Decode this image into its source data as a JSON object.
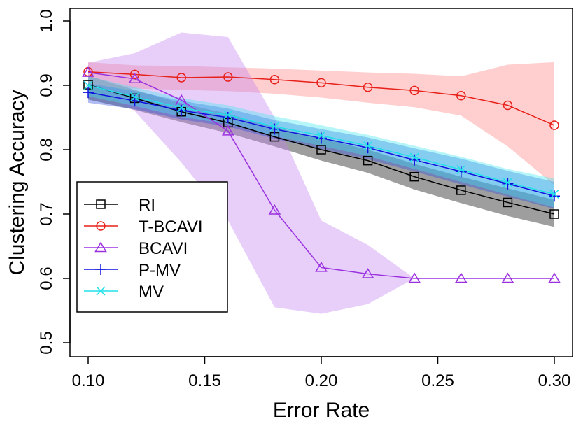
{
  "chart_data": {
    "type": "line",
    "title": "",
    "xlabel": "Error Rate",
    "ylabel": "Clustering Accuracy",
    "xlim": [
      0.1,
      0.3
    ],
    "ylim": [
      0.5,
      1.0
    ],
    "x": [
      0.1,
      0.12,
      0.14,
      0.16,
      0.18,
      0.2,
      0.22,
      0.24,
      0.26,
      0.28,
      0.3
    ],
    "x_ticks": [
      0.1,
      0.15,
      0.2,
      0.25,
      0.3
    ],
    "x_tick_labels": [
      "0.10",
      "0.15",
      "0.20",
      "0.25",
      "0.30"
    ],
    "y_ticks": [
      0.5,
      0.6,
      0.7,
      0.8,
      0.9,
      1.0
    ],
    "y_tick_labels": [
      "0.5",
      "0.6",
      "0.7",
      "0.8",
      "0.9",
      "1.0"
    ],
    "grid": false,
    "legend_position": "bottom-left",
    "series": [
      {
        "name": "RI",
        "color": "#000000",
        "band_color": "#000000",
        "marker": "square",
        "values": [
          0.901,
          0.88,
          0.859,
          0.842,
          0.82,
          0.8,
          0.783,
          0.758,
          0.737,
          0.718,
          0.7
        ],
        "lower": [
          0.878,
          0.862,
          0.843,
          0.826,
          0.805,
          0.783,
          0.764,
          0.738,
          0.717,
          0.697,
          0.68
        ],
        "upper": [
          0.915,
          0.893,
          0.872,
          0.856,
          0.835,
          0.818,
          0.8,
          0.778,
          0.758,
          0.74,
          0.722
        ]
      },
      {
        "name": "T-BCAVI",
        "color": "#e8201a",
        "band_color": "#ff8080",
        "marker": "circle",
        "values": [
          0.921,
          0.917,
          0.912,
          0.913,
          0.909,
          0.904,
          0.897,
          0.892,
          0.884,
          0.869,
          0.838
        ],
        "lower": [
          0.9,
          0.895,
          0.893,
          0.891,
          0.887,
          0.881,
          0.873,
          0.866,
          0.853,
          0.805,
          0.745
        ],
        "upper": [
          0.936,
          0.931,
          0.93,
          0.928,
          0.926,
          0.923,
          0.92,
          0.918,
          0.914,
          0.932,
          0.936
        ]
      },
      {
        "name": "BCAVI",
        "color": "#9b30e0",
        "band_color": "#c080f0",
        "marker": "triangle",
        "values": [
          0.92,
          0.91,
          0.877,
          0.829,
          0.706,
          0.617,
          0.607,
          0.6,
          0.6,
          0.6,
          0.6
        ],
        "lower": [
          0.905,
          0.86,
          0.78,
          0.69,
          0.555,
          0.545,
          0.56,
          0.6,
          0.6,
          0.6,
          0.6
        ],
        "upper": [
          0.935,
          0.95,
          0.982,
          0.975,
          0.85,
          0.69,
          0.652,
          0.6,
          0.6,
          0.6,
          0.6
        ]
      },
      {
        "name": "P-MV",
        "color": "#1010e0",
        "band_color": "#3050e0",
        "marker": "plus",
        "values": [
          0.889,
          0.876,
          0.861,
          0.85,
          0.832,
          0.818,
          0.803,
          0.784,
          0.766,
          0.747,
          0.728
        ],
        "lower": [
          0.873,
          0.863,
          0.847,
          0.836,
          0.817,
          0.801,
          0.785,
          0.766,
          0.746,
          0.727,
          0.708
        ],
        "upper": [
          0.903,
          0.891,
          0.876,
          0.864,
          0.846,
          0.832,
          0.819,
          0.802,
          0.786,
          0.767,
          0.75
        ]
      },
      {
        "name": "MV",
        "color": "#20e0e8",
        "band_color": "#40e8f0",
        "marker": "cross",
        "values": [
          0.9,
          0.882,
          0.865,
          0.854,
          0.836,
          0.822,
          0.806,
          0.788,
          0.769,
          0.749,
          0.731
        ],
        "lower": [
          0.883,
          0.868,
          0.851,
          0.84,
          0.821,
          0.806,
          0.79,
          0.77,
          0.75,
          0.73,
          0.71
        ],
        "upper": [
          0.914,
          0.897,
          0.88,
          0.869,
          0.852,
          0.838,
          0.823,
          0.806,
          0.789,
          0.77,
          0.755
        ]
      }
    ]
  }
}
